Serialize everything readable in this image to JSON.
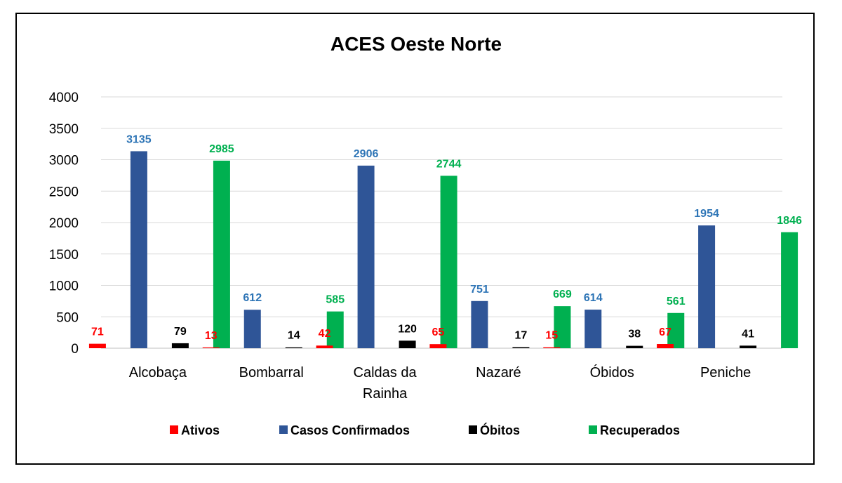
{
  "chart_data": {
    "type": "bar",
    "title": "ACES Oeste Norte",
    "xlabel": "",
    "ylabel": "",
    "ylim": [
      0,
      4000
    ],
    "yticks": [
      0,
      500,
      1000,
      1500,
      2000,
      2500,
      3000,
      3500,
      4000
    ],
    "grid": true,
    "legend_position": "bottom",
    "categories": [
      [
        "Alcobaça"
      ],
      [
        "Bombarral"
      ],
      [
        "Caldas da",
        "Rainha"
      ],
      [
        "Nazaré"
      ],
      [
        "Óbidos"
      ],
      [
        "Peniche"
      ]
    ],
    "series": [
      {
        "name": "Ativos",
        "color": "#ff0000",
        "label_color": "#ff0000",
        "values": [
          71,
          13,
          42,
          65,
          15,
          67
        ]
      },
      {
        "name": "Casos Confirmados",
        "color": "#2f5597",
        "label_color": "#2e75b6",
        "values": [
          3135,
          612,
          2906,
          751,
          614,
          1954
        ]
      },
      {
        "name": "Óbitos",
        "color": "#000000",
        "label_color": "#000000",
        "values": [
          79,
          14,
          120,
          17,
          38,
          41
        ]
      },
      {
        "name": "Recuperados",
        "color": "#00b050",
        "label_color": "#00b050",
        "values": [
          2985,
          585,
          2744,
          669,
          561,
          1846
        ]
      }
    ]
  }
}
